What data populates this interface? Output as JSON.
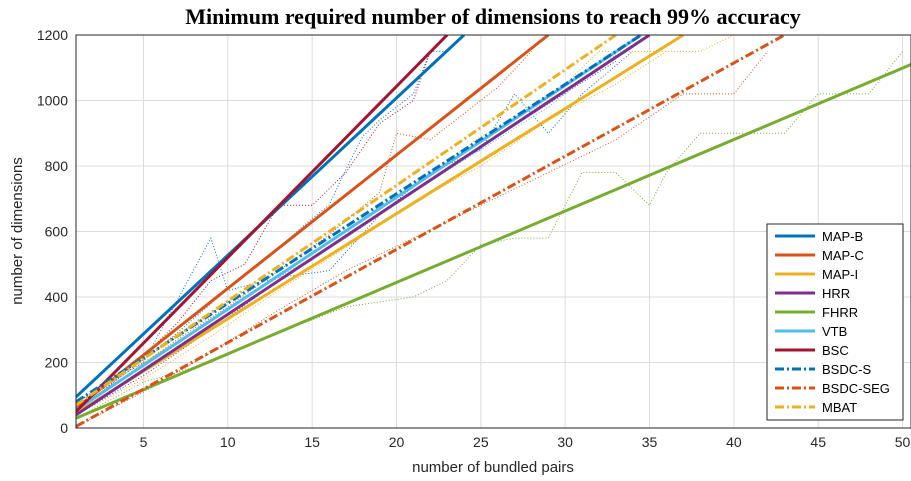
{
  "chart_data": {
    "type": "line",
    "title": "Minimum required number of dimensions to reach 99% accuracy",
    "xlabel": "number of bundled pairs",
    "ylabel": "number of dimensions",
    "xlim": [
      1,
      50.5
    ],
    "ylim": [
      0,
      1200
    ],
    "xticks": [
      5,
      10,
      15,
      20,
      25,
      30,
      35,
      40,
      45,
      50
    ],
    "yticks": [
      0,
      200,
      400,
      600,
      800,
      1000,
      1200
    ],
    "grid": true,
    "legend_position": "bottom-right",
    "series": [
      {
        "name": "MAP-B",
        "color": "#0072BD",
        "dash": "solid",
        "fit": [
          [
            1,
            95
          ],
          [
            24,
            1200
          ]
        ],
        "measured": [
          [
            1,
            80
          ],
          [
            3,
            130
          ],
          [
            5,
            210
          ],
          [
            7,
            290
          ],
          [
            9,
            380
          ],
          [
            11,
            470
          ],
          [
            13,
            550
          ],
          [
            15,
            640
          ],
          [
            16,
            680
          ],
          [
            17,
            790
          ],
          [
            18,
            890
          ],
          [
            19,
            940
          ],
          [
            21,
            1020
          ],
          [
            22,
            1150
          ],
          [
            23,
            1150
          ]
        ]
      },
      {
        "name": "MAP-C",
        "color": "#D95319",
        "dash": "solid",
        "fit": [
          [
            1,
            60
          ],
          [
            29,
            1200
          ]
        ],
        "measured": [
          [
            1,
            60
          ],
          [
            4,
            160
          ],
          [
            7,
            270
          ],
          [
            10,
            370
          ],
          [
            13,
            480
          ],
          [
            16,
            590
          ],
          [
            19,
            720
          ],
          [
            20,
            900
          ],
          [
            22,
            880
          ],
          [
            24,
            960
          ],
          [
            26,
            1040
          ],
          [
            28,
            1150
          ]
        ]
      },
      {
        "name": "MAP-I",
        "color": "#EDB120",
        "dash": "solid",
        "fit": [
          [
            1,
            45
          ],
          [
            37,
            1200
          ]
        ],
        "measured": [
          [
            1,
            40
          ],
          [
            5,
            150
          ],
          [
            9,
            280
          ],
          [
            13,
            420
          ],
          [
            17,
            550
          ],
          [
            21,
            690
          ],
          [
            25,
            800
          ],
          [
            29,
            940
          ],
          [
            33,
            1050
          ],
          [
            36,
            1150
          ]
        ]
      },
      {
        "name": "HRR",
        "color": "#7E2F8E",
        "dash": "solid",
        "fit": [
          [
            1,
            40
          ],
          [
            35,
            1200
          ]
        ],
        "measured": [
          [
            1,
            40
          ],
          [
            5,
            160
          ],
          [
            9,
            300
          ],
          [
            13,
            450
          ],
          [
            17,
            590
          ],
          [
            21,
            720
          ],
          [
            25,
            860
          ],
          [
            29,
            990
          ],
          [
            33,
            1120
          ]
        ]
      },
      {
        "name": "FHRR",
        "color": "#77AC30",
        "dash": "solid",
        "fit": [
          [
            1,
            30
          ],
          [
            50.5,
            1110
          ]
        ],
        "measured": [
          [
            1,
            30
          ],
          [
            5,
            140
          ],
          [
            9,
            200
          ],
          [
            13,
            290
          ],
          [
            17,
            370
          ],
          [
            21,
            400
          ],
          [
            23,
            450
          ],
          [
            25,
            560
          ],
          [
            27,
            580
          ],
          [
            29,
            580
          ],
          [
            31,
            780
          ],
          [
            33,
            780
          ],
          [
            35,
            680
          ],
          [
            36,
            780
          ],
          [
            38,
            900
          ],
          [
            41,
            900
          ],
          [
            43,
            900
          ],
          [
            45,
            1020
          ],
          [
            48,
            1020
          ],
          [
            50,
            1150
          ]
        ]
      },
      {
        "name": "VTB",
        "color": "#4DBEEE",
        "dash": "solid",
        "fit": [
          [
            1,
            55
          ],
          [
            34.5,
            1200
          ]
        ],
        "measured": [
          [
            1,
            60
          ],
          [
            5,
            190
          ],
          [
            9,
            330
          ],
          [
            13,
            460
          ],
          [
            17,
            580
          ],
          [
            21,
            720
          ],
          [
            25,
            850
          ],
          [
            29,
            980
          ],
          [
            33,
            1140
          ]
        ]
      },
      {
        "name": "BSC",
        "color": "#A2142F",
        "dash": "solid",
        "fit": [
          [
            1,
            50
          ],
          [
            23,
            1200
          ]
        ],
        "measured": [
          [
            1,
            50
          ],
          [
            3,
            130
          ],
          [
            5,
            220
          ],
          [
            7,
            320
          ],
          [
            9,
            450
          ],
          [
            11,
            500
          ],
          [
            13,
            680
          ],
          [
            15,
            680
          ],
          [
            17,
            780
          ],
          [
            19,
            930
          ],
          [
            21,
            1000
          ],
          [
            22,
            1150
          ]
        ]
      },
      {
        "name": "BSDC-S",
        "color": "#0072BD",
        "dash": "dashdot",
        "fit": [
          [
            1,
            80
          ],
          [
            34.5,
            1200
          ]
        ],
        "measured": [
          [
            1,
            80
          ],
          [
            5,
            200
          ],
          [
            9,
            580
          ],
          [
            10,
            420
          ],
          [
            13,
            460
          ],
          [
            16,
            480
          ],
          [
            19,
            650
          ],
          [
            22,
            780
          ],
          [
            25,
            850
          ],
          [
            27,
            1020
          ],
          [
            29,
            900
          ],
          [
            31,
            1020
          ],
          [
            34,
            1150
          ]
        ]
      },
      {
        "name": "BSDC-SEG",
        "color": "#D95319",
        "dash": "dashdot",
        "fit": [
          [
            1,
            5
          ],
          [
            43,
            1200
          ]
        ],
        "measured": [
          [
            1,
            5
          ],
          [
            5,
            110
          ],
          [
            9,
            230
          ],
          [
            13,
            360
          ],
          [
            17,
            480
          ],
          [
            21,
            580
          ],
          [
            25,
            680
          ],
          [
            29,
            780
          ],
          [
            33,
            880
          ],
          [
            37,
            1020
          ],
          [
            40,
            1020
          ],
          [
            42,
            1150
          ]
        ]
      },
      {
        "name": "MBAT",
        "color": "#EDB120",
        "dash": "dashdot",
        "fit": [
          [
            1,
            70
          ],
          [
            33,
            1200
          ]
        ],
        "measured": [
          [
            1,
            70
          ],
          [
            5,
            200
          ],
          [
            9,
            330
          ],
          [
            13,
            470
          ],
          [
            17,
            600
          ],
          [
            21,
            740
          ],
          [
            25,
            890
          ],
          [
            29,
            1000
          ],
          [
            32,
            1150
          ],
          [
            35,
            1150
          ],
          [
            38,
            1150
          ],
          [
            40,
            1200
          ]
        ]
      }
    ]
  }
}
